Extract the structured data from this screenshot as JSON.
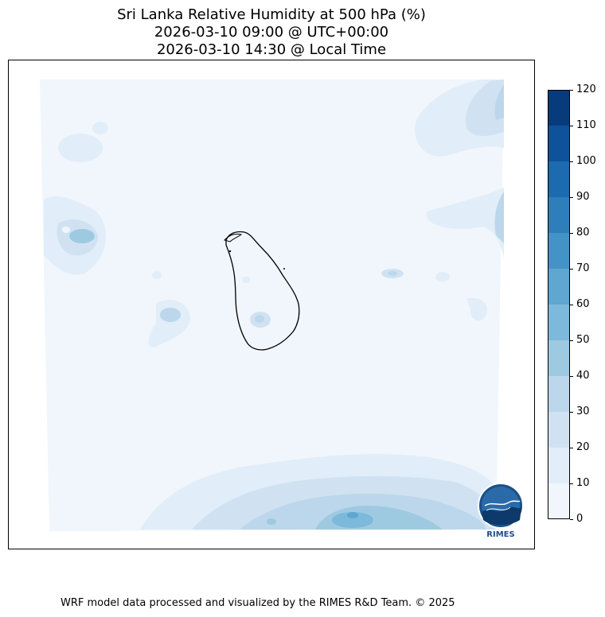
{
  "title": {
    "line1": "Sri Lanka Relative Humidity at 500 hPa (%)",
    "line2": "2026-03-10 09:00 @ UTC+00:00",
    "line3": "2026-03-10 14:30 @ Local Time"
  },
  "colorbar": {
    "ticks": [
      "0",
      "10",
      "20",
      "30",
      "40",
      "50",
      "60",
      "70",
      "80",
      "90",
      "100",
      "110",
      "120"
    ],
    "colors": [
      "#f0f6fc",
      "#e1edf8",
      "#d0e2f2",
      "#bcd7eb",
      "#9ecae1",
      "#7db9da",
      "#5fa6d1",
      "#4493c6",
      "#2e7ebb",
      "#1c6aaf",
      "#0d529b",
      "#083b7b"
    ]
  },
  "logo": {
    "text": "RIMES"
  },
  "footer": "WRF model data processed and visualized by the RIMES R&D Team. © 2025"
}
